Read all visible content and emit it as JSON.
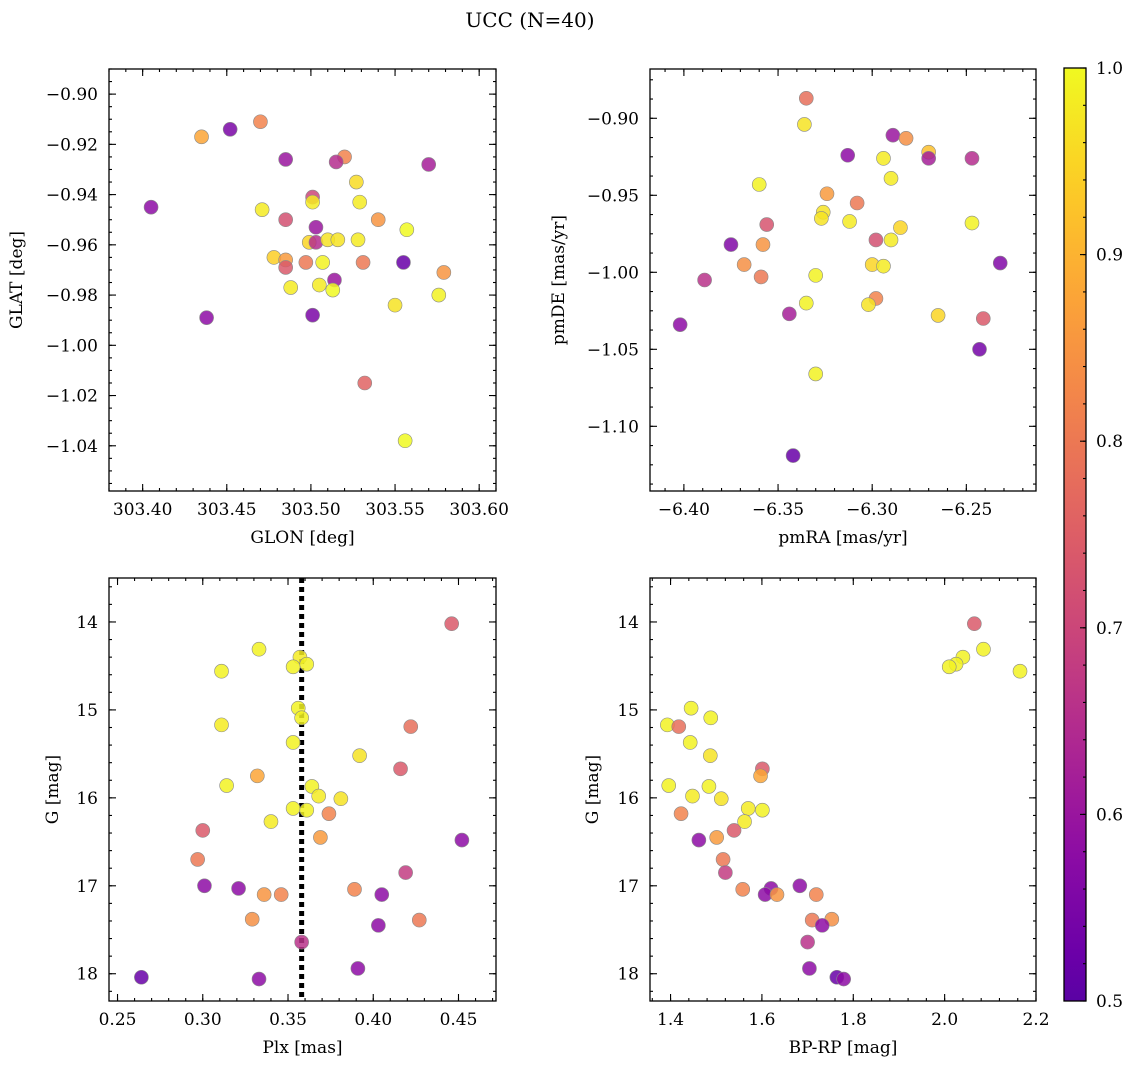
{
  "figure": {
    "suptitle": "UCC (N=40)"
  },
  "colormap": {
    "name": "plasma",
    "range": [
      0.5,
      1.0
    ],
    "ticks": [
      0.5,
      0.6,
      0.7,
      0.8,
      0.9,
      1.0
    ],
    "tick_labels": [
      "0.5",
      "0.6",
      "0.7",
      "0.8",
      "0.9",
      "1.0"
    ]
  },
  "chart_data": [
    {
      "type": "scatter",
      "xlabel": "GLON [deg]",
      "ylabel": "GLAT [deg]",
      "xlim": [
        303.38,
        303.61
      ],
      "ylim": [
        -1.058,
        -0.89
      ],
      "y_inverted": false,
      "xticks": [
        303.4,
        303.45,
        303.5,
        303.55,
        303.6
      ],
      "xtick_labels": [
        "303.40",
        "303.45",
        "303.50",
        "303.55",
        "303.60"
      ],
      "yticks": [
        -0.9,
        -0.92,
        -0.94,
        -0.96,
        -0.98,
        -1.0,
        -1.02,
        -1.04
      ],
      "ytick_labels": [
        "−0.90",
        "−0.92",
        "−0.94",
        "−0.96",
        "−0.98",
        "−1.00",
        "−1.02",
        "−1.04"
      ],
      "vline": null,
      "x": [
        303.435,
        303.452,
        303.47,
        303.485,
        303.52,
        303.515,
        303.57,
        303.501,
        303.527,
        303.405,
        303.471,
        303.501,
        303.529,
        303.485,
        303.54,
        303.503,
        303.557,
        303.499,
        303.503,
        303.51,
        303.516,
        303.528,
        303.478,
        303.485,
        303.497,
        303.507,
        303.531,
        303.555,
        303.579,
        303.485,
        303.514,
        303.488,
        303.505,
        303.513,
        303.576,
        303.55,
        303.438,
        303.501,
        303.532,
        303.556
      ],
      "y": [
        -0.917,
        -0.914,
        -0.911,
        -0.926,
        -0.925,
        -0.927,
        -0.928,
        -0.941,
        -0.935,
        -0.945,
        -0.946,
        -0.943,
        -0.943,
        -0.95,
        -0.95,
        -0.953,
        -0.954,
        -0.959,
        -0.959,
        -0.958,
        -0.958,
        -0.958,
        -0.965,
        -0.966,
        -0.967,
        -0.967,
        -0.967,
        -0.967,
        -0.971,
        -0.969,
        -0.974,
        -0.977,
        -0.976,
        -0.978,
        -0.98,
        -0.984,
        -0.989,
        -0.988,
        -1.015,
        -1.038
      ],
      "c": [
        0.88,
        0.55,
        0.82,
        0.6,
        0.82,
        0.65,
        0.62,
        0.7,
        0.96,
        0.58,
        0.98,
        0.98,
        0.98,
        0.72,
        0.85,
        0.6,
        1.0,
        0.95,
        0.65,
        0.97,
        0.97,
        0.98,
        0.94,
        0.86,
        0.8,
        0.99,
        0.8,
        0.52,
        0.85,
        0.74,
        0.6,
        0.98,
        0.98,
        1.0,
        0.99,
        0.97,
        0.58,
        0.55,
        0.76,
        1.0
      ]
    },
    {
      "type": "scatter",
      "xlabel": "pmRA [mas/yr]",
      "ylabel": "pmDE [mas/yr]",
      "xlim": [
        -6.418,
        -6.213
      ],
      "ylim": [
        -1.142,
        -0.868
      ],
      "y_inverted": false,
      "xticks": [
        -6.4,
        -6.35,
        -6.3,
        -6.25
      ],
      "xtick_labels": [
        "−6.40",
        "−6.35",
        "−6.30",
        "−6.25"
      ],
      "yticks": [
        -0.9,
        -0.95,
        -1.0,
        -1.05,
        -1.1
      ],
      "ytick_labels": [
        "−0.90",
        "−0.95",
        "−1.00",
        "−1.05",
        "−1.10"
      ],
      "vline": null,
      "x": [
        -6.335,
        -6.336,
        -6.289,
        -6.282,
        -6.27,
        -6.294,
        -6.27,
        -6.247,
        -6.313,
        -6.29,
        -6.36,
        -6.324,
        -6.308,
        -6.326,
        -6.356,
        -6.327,
        -6.312,
        -6.247,
        -6.285,
        -6.298,
        -6.29,
        -6.375,
        -6.358,
        -6.368,
        -6.3,
        -6.294,
        -6.359,
        -6.389,
        -6.33,
        -6.232,
        -6.298,
        -6.335,
        -6.302,
        -6.402,
        -6.344,
        -6.265,
        -6.241,
        -6.243,
        -6.33,
        -6.342
      ],
      "y": [
        -0.887,
        -0.904,
        -0.911,
        -0.913,
        -0.922,
        -0.926,
        -0.926,
        -0.926,
        -0.924,
        -0.939,
        -0.943,
        -0.949,
        -0.955,
        -0.961,
        -0.969,
        -0.965,
        -0.967,
        -0.968,
        -0.971,
        -0.979,
        -0.979,
        -0.982,
        -0.982,
        -0.995,
        -0.995,
        -0.996,
        -1.003,
        -1.005,
        -1.002,
        -0.994,
        -1.017,
        -1.02,
        -1.021,
        -1.034,
        -1.027,
        -1.028,
        -1.03,
        -1.05,
        -1.066,
        -1.119
      ],
      "c": [
        0.78,
        0.97,
        0.6,
        0.84,
        0.92,
        0.98,
        0.62,
        0.65,
        0.58,
        0.98,
        0.99,
        0.86,
        0.8,
        0.97,
        0.73,
        0.97,
        0.98,
        0.99,
        0.95,
        0.72,
        0.98,
        0.56,
        0.85,
        0.84,
        0.95,
        0.98,
        0.8,
        0.66,
        0.99,
        0.56,
        0.82,
        0.99,
        0.97,
        0.58,
        0.62,
        0.95,
        0.74,
        0.54,
        0.99,
        0.52
      ]
    },
    {
      "type": "scatter",
      "xlabel": "Plx [mas]",
      "ylabel": "G [mag]",
      "xlim": [
        0.245,
        0.472
      ],
      "ylim": [
        18.31,
        13.5
      ],
      "y_inverted": true,
      "xticks": [
        0.25,
        0.3,
        0.35,
        0.4,
        0.45
      ],
      "xtick_labels": [
        "0.25",
        "0.30",
        "0.35",
        "0.40",
        "0.45"
      ],
      "yticks": [
        14,
        15,
        16,
        17,
        18
      ],
      "ytick_labels": [
        "14",
        "15",
        "16",
        "17",
        "18"
      ],
      "vline": {
        "x": 0.358,
        "style": "dotted"
      },
      "x": [
        0.446,
        0.333,
        0.357,
        0.353,
        0.361,
        0.311,
        0.356,
        0.358,
        0.311,
        0.422,
        0.353,
        0.392,
        0.416,
        0.332,
        0.314,
        0.364,
        0.368,
        0.353,
        0.381,
        0.361,
        0.374,
        0.34,
        0.369,
        0.452,
        0.3,
        0.419,
        0.297,
        0.301,
        0.321,
        0.336,
        0.346,
        0.389,
        0.405,
        0.427,
        0.329,
        0.403,
        0.358,
        0.391,
        0.264,
        0.333
      ],
      "y": [
        14.02,
        14.31,
        14.4,
        14.51,
        14.48,
        14.56,
        14.98,
        15.09,
        15.17,
        15.19,
        15.37,
        15.52,
        15.67,
        15.75,
        15.86,
        15.87,
        15.98,
        16.12,
        16.01,
        16.14,
        16.18,
        16.27,
        16.45,
        16.48,
        16.37,
        16.85,
        16.7,
        17.0,
        17.03,
        17.1,
        17.1,
        17.04,
        17.1,
        17.39,
        17.38,
        17.45,
        17.64,
        17.94,
        18.04,
        18.06
      ],
      "c": [
        0.74,
        0.99,
        0.98,
        0.99,
        0.99,
        0.99,
        0.99,
        0.99,
        0.98,
        0.78,
        0.99,
        0.97,
        0.74,
        0.88,
        0.99,
        0.99,
        0.98,
        0.99,
        0.97,
        0.99,
        0.82,
        0.98,
        0.86,
        0.58,
        0.74,
        0.68,
        0.8,
        0.58,
        0.58,
        0.85,
        0.82,
        0.82,
        0.58,
        0.8,
        0.84,
        0.58,
        0.66,
        0.58,
        0.52,
        0.58
      ]
    },
    {
      "type": "scatter",
      "xlabel": "BP-RP [mag]",
      "ylabel": "G [mag]",
      "xlim": [
        1.355,
        2.2
      ],
      "ylim": [
        18.31,
        13.5
      ],
      "y_inverted": true,
      "xticks": [
        1.4,
        1.6,
        1.8,
        2.0,
        2.2
      ],
      "xtick_labels": [
        "1.4",
        "1.6",
        "1.8",
        "2.0",
        "2.2"
      ],
      "yticks": [
        14,
        15,
        16,
        17,
        18
      ],
      "ytick_labels": [
        "14",
        "15",
        "16",
        "17",
        "18"
      ],
      "vline": null,
      "x": [
        2.065,
        2.085,
        2.04,
        2.025,
        2.01,
        2.165,
        1.445,
        1.488,
        1.393,
        1.418,
        1.443,
        1.487,
        1.601,
        1.597,
        1.396,
        1.484,
        1.448,
        1.511,
        1.57,
        1.601,
        1.423,
        1.562,
        1.539,
        1.501,
        1.462,
        1.515,
        1.52,
        1.683,
        1.62,
        1.607,
        1.633,
        1.558,
        1.719,
        1.71,
        1.753,
        1.732,
        1.7,
        1.704,
        1.764,
        1.779
      ],
      "y": [
        14.02,
        14.31,
        14.4,
        14.48,
        14.51,
        14.56,
        14.98,
        15.09,
        15.17,
        15.19,
        15.37,
        15.52,
        15.67,
        15.75,
        15.86,
        15.87,
        15.98,
        16.01,
        16.12,
        16.14,
        16.18,
        16.27,
        16.37,
        16.45,
        16.48,
        16.7,
        16.85,
        17.0,
        17.03,
        17.1,
        17.1,
        17.04,
        17.1,
        17.39,
        17.38,
        17.45,
        17.64,
        17.94,
        18.04,
        18.06
      ],
      "c": [
        0.74,
        0.99,
        0.99,
        0.99,
        0.99,
        0.99,
        0.99,
        0.99,
        0.99,
        0.78,
        0.99,
        0.97,
        0.74,
        0.88,
        0.99,
        0.99,
        0.98,
        0.97,
        0.98,
        0.99,
        0.82,
        0.98,
        0.74,
        0.86,
        0.58,
        0.8,
        0.68,
        0.58,
        0.58,
        0.58,
        0.85,
        0.82,
        0.82,
        0.8,
        0.84,
        0.58,
        0.66,
        0.58,
        0.52,
        0.58
      ]
    }
  ]
}
